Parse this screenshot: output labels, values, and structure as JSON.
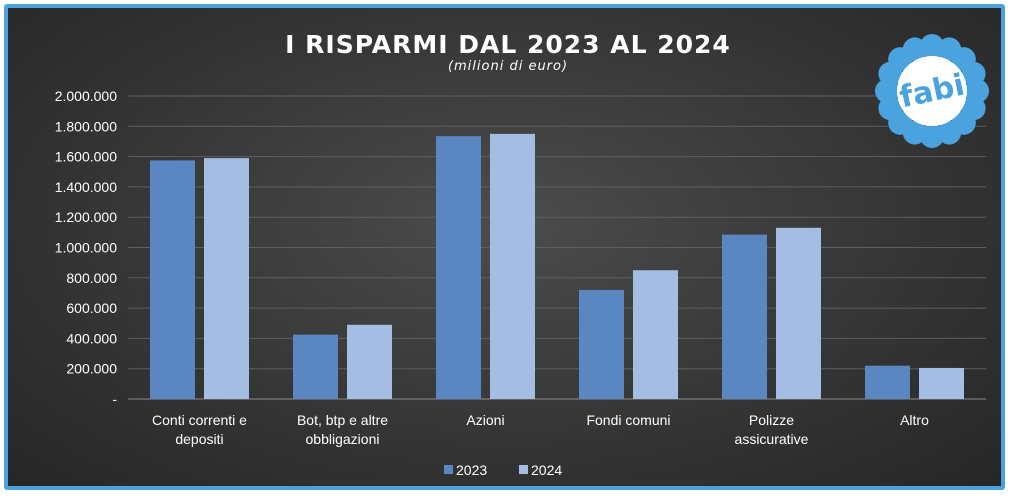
{
  "chart_data": {
    "type": "bar",
    "title": "I RISPARMI DAL 2023 AL 2024",
    "subtitle": "(milioni di euro)",
    "categories": [
      [
        "Conti correnti e",
        "depositi"
      ],
      [
        "Bot, btp e altre",
        "obbligazioni"
      ],
      [
        "Azioni"
      ],
      [
        "Fondi comuni"
      ],
      [
        "Polizze",
        "assicurative"
      ],
      [
        "Altro"
      ]
    ],
    "series": [
      {
        "name": "2023",
        "color": "#5a87c1",
        "values": [
          1575000,
          425000,
          1735000,
          720000,
          1085000,
          220000
        ]
      },
      {
        "name": "2024",
        "color": "#a3bde3",
        "values": [
          1590000,
          490000,
          1750000,
          850000,
          1130000,
          205000
        ]
      }
    ],
    "ylim": [
      0,
      2000000
    ],
    "yticks": [
      "-",
      "200.000",
      "400.000",
      "600.000",
      "800.000",
      "1.000.000",
      "1.200.000",
      "1.400.000",
      "1.600.000",
      "1.800.000",
      "2.000.000"
    ],
    "grid": true,
    "legend_position": "bottom"
  },
  "logo": {
    "text": "fabi",
    "color": "#4aa3df"
  }
}
